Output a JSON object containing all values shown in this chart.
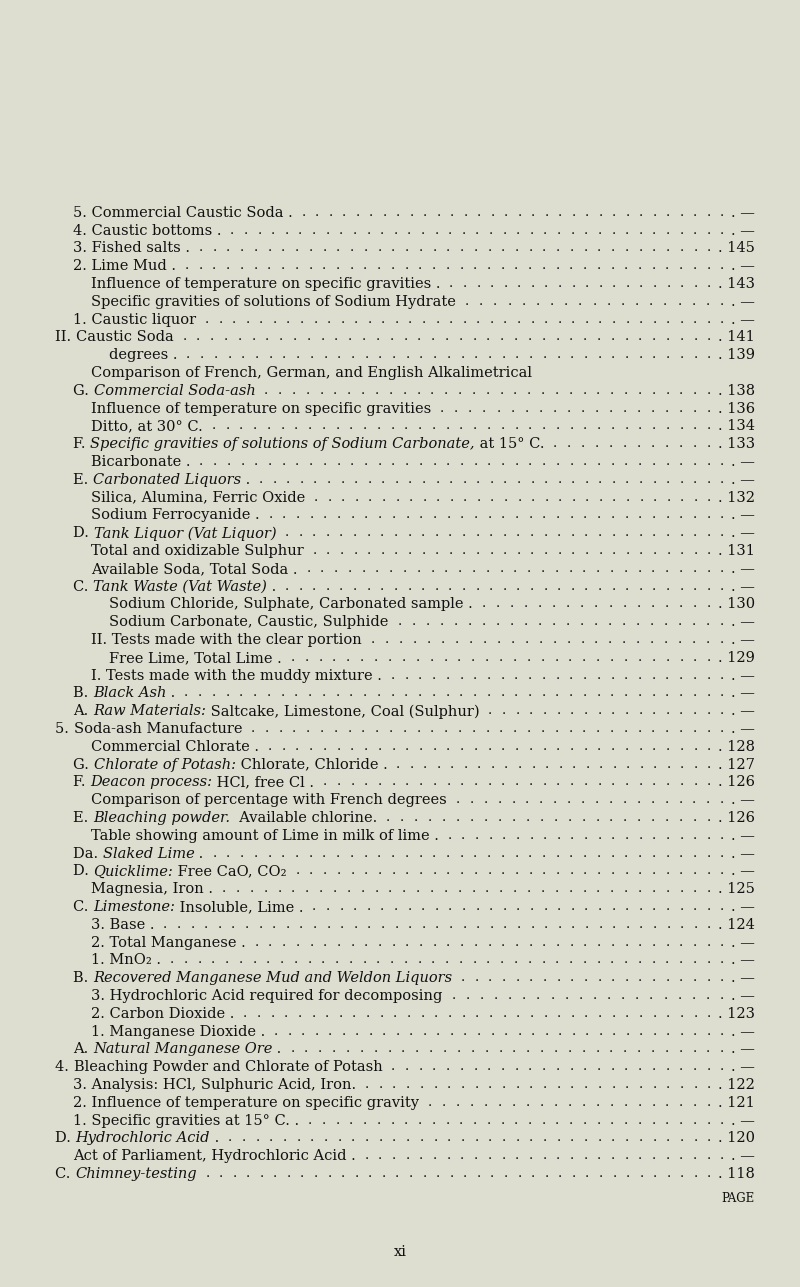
{
  "bg_color": "#deded0",
  "text_color": "#111111",
  "title": "xi",
  "lines": [
    {
      "indent": 0,
      "prefix": "C. ",
      "italic": "Chimney-testing",
      "suffix": "",
      "page": "118"
    },
    {
      "indent": 1,
      "prefix": "Act of Parliament, Hydrochloric Acid .",
      "italic": "",
      "suffix": "",
      "page": "—"
    },
    {
      "indent": 0,
      "prefix": "D. ",
      "italic": "Hydrochloric Acid",
      "suffix": " .",
      "page": "120"
    },
    {
      "indent": 1,
      "prefix": "1. Specific gravities at 15° C. .",
      "italic": "",
      "suffix": "",
      "page": "—"
    },
    {
      "indent": 1,
      "prefix": "2. Influence of temperature on specific gravity",
      "italic": "",
      "suffix": "",
      "page": "121"
    },
    {
      "indent": 1,
      "prefix": "3. Analysis: HCl, Sulphuric Acid, Iron.",
      "italic": "",
      "suffix": "",
      "page": "122"
    },
    {
      "indent": 0,
      "prefix": "4. ",
      "italic": "",
      "suffix": "",
      "page": "—",
      "smallcaps": "Bleaching Powder and Chlorate of Potash"
    },
    {
      "indent": 1,
      "prefix": "A. ",
      "italic": "Natural Manganese Ore",
      "suffix": " .",
      "page": "—"
    },
    {
      "indent": 2,
      "prefix": "1. Manganese Dioxide .",
      "italic": "",
      "suffix": "",
      "page": "—"
    },
    {
      "indent": 2,
      "prefix": "2. Carbon Dioxide .",
      "italic": "",
      "suffix": "",
      "page": "123"
    },
    {
      "indent": 2,
      "prefix": "3. Hydrochloric Acid required for decomposing",
      "italic": "",
      "suffix": "",
      "page": "—"
    },
    {
      "indent": 1,
      "prefix": "B. ",
      "italic": "Recovered Manganese Mud and Weldon Liquors",
      "suffix": "",
      "page": "—"
    },
    {
      "indent": 2,
      "prefix": "1. MnO₂ .",
      "italic": "",
      "suffix": "",
      "page": "—"
    },
    {
      "indent": 2,
      "prefix": "2. Total Manganese .",
      "italic": "",
      "suffix": "",
      "page": "—"
    },
    {
      "indent": 2,
      "prefix": "3. Base .",
      "italic": "",
      "suffix": "",
      "page": "124"
    },
    {
      "indent": 1,
      "prefix": "C. ",
      "italic": "Limestone:",
      "suffix": " Insoluble, Lime .",
      "page": "—"
    },
    {
      "indent": 2,
      "prefix": "Magnesia, Iron .",
      "italic": "",
      "suffix": "",
      "page": "125"
    },
    {
      "indent": 1,
      "prefix": "D. ",
      "italic": "Quicklime:",
      "suffix": " Free CaO, CO₂",
      "page": "—"
    },
    {
      "indent": 1,
      "prefix": "Da. ",
      "italic": "Slaked Lime",
      "suffix": " .",
      "page": "—"
    },
    {
      "indent": 2,
      "prefix": "Table showing amount of Lime in milk of lime .",
      "italic": "",
      "suffix": "",
      "page": "—"
    },
    {
      "indent": 1,
      "prefix": "E. ",
      "italic": "Bleaching powder.",
      "suffix": "  Available chlorine.",
      "page": "126"
    },
    {
      "indent": 2,
      "prefix": "Comparison of percentage with French degrees",
      "italic": "",
      "suffix": "",
      "page": "—"
    },
    {
      "indent": 1,
      "prefix": "F. ",
      "italic": "Deacon process:",
      "suffix": " HCl, free Cl .",
      "page": "126"
    },
    {
      "indent": 1,
      "prefix": "G. ",
      "italic": "Chlorate of Potash:",
      "suffix": " Chlorate, Chloride .",
      "page": "127"
    },
    {
      "indent": 2,
      "prefix": "Commercial Chlorate .",
      "italic": "",
      "suffix": "",
      "page": "128"
    },
    {
      "indent": 0,
      "prefix": "5. ",
      "italic": "",
      "suffix": "",
      "page": "—",
      "smallcaps": "Soda-ash Manufacture"
    },
    {
      "indent": 1,
      "prefix": "A. ",
      "italic": "Raw Materials:",
      "suffix": " Saltcake, Limestone, Coal (Sulphur)",
      "page": "—"
    },
    {
      "indent": 1,
      "prefix": "B. ",
      "italic": "Black Ash",
      "suffix": " .",
      "page": "—"
    },
    {
      "indent": 2,
      "prefix": "I. Tests made with the muddy mixture .",
      "italic": "",
      "suffix": "",
      "page": "—"
    },
    {
      "indent": 3,
      "prefix": "Free Lime, Total Lime .",
      "italic": "",
      "suffix": "",
      "page": "129"
    },
    {
      "indent": 2,
      "prefix": "II. Tests made with the clear portion",
      "italic": "",
      "suffix": "",
      "page": "—"
    },
    {
      "indent": 3,
      "prefix": "Sodium Carbonate, Caustic, Sulphide",
      "italic": "",
      "suffix": "",
      "page": "—"
    },
    {
      "indent": 3,
      "prefix": "Sodium Chloride, Sulphate, Carbonated sample .",
      "italic": "",
      "suffix": "",
      "page": "130"
    },
    {
      "indent": 1,
      "prefix": "C. ",
      "italic": "Tank Waste (Vat Waste)",
      "suffix": " .",
      "page": "—"
    },
    {
      "indent": 2,
      "prefix": "Available Soda, Total Soda .",
      "italic": "",
      "suffix": "",
      "page": "—"
    },
    {
      "indent": 2,
      "prefix": "Total and oxidizable Sulphur",
      "italic": "",
      "suffix": "",
      "page": "131"
    },
    {
      "indent": 1,
      "prefix": "D. ",
      "italic": "Tank Liquor (Vat Liquor)",
      "suffix": "",
      "page": "—"
    },
    {
      "indent": 2,
      "prefix": "Sodium Ferrocyanide .",
      "italic": "",
      "suffix": "",
      "page": "—"
    },
    {
      "indent": 2,
      "prefix": "Silica, Alumina, Ferric Oxide",
      "italic": "",
      "suffix": "",
      "page": "132"
    },
    {
      "indent": 1,
      "prefix": "E. ",
      "italic": "Carbonated Liquors",
      "suffix": " .",
      "page": "—"
    },
    {
      "indent": 2,
      "prefix": "Bicarbonate .",
      "italic": "",
      "suffix": "",
      "page": "—"
    },
    {
      "indent": 1,
      "prefix": "F. ",
      "italic": "Specific gravities of solutions of Sodium Carbonate,",
      "suffix": " at 15° C.",
      "page": "133"
    },
    {
      "indent": 2,
      "prefix": "Ditto, at 30° C.",
      "italic": "",
      "suffix": "",
      "page": "134"
    },
    {
      "indent": 2,
      "prefix": "Influence of temperature on specific gravities",
      "italic": "",
      "suffix": "",
      "page": "136"
    },
    {
      "indent": 1,
      "prefix": "G. ",
      "italic": "Commercial Soda-ash",
      "suffix": "",
      "page": "138"
    },
    {
      "indent": 2,
      "prefix": "Comparison of French, German, and English Alkalimetrical",
      "italic": "",
      "suffix": "",
      "page": ""
    },
    {
      "indent": 3,
      "prefix": "degrees .",
      "italic": "",
      "suffix": "",
      "page": "139"
    },
    {
      "indent": 0,
      "prefix": "II. ",
      "italic": "",
      "suffix": "",
      "page": "141",
      "smallcaps": "Caustic Soda"
    },
    {
      "indent": 1,
      "prefix": "1. Caustic liquor",
      "italic": "",
      "suffix": "",
      "page": "—"
    },
    {
      "indent": 2,
      "prefix": "Specific gravities of solutions of Sodium Hydrate",
      "italic": "",
      "suffix": "",
      "page": "—"
    },
    {
      "indent": 2,
      "prefix": "Influence of temperature on specific gravities .",
      "italic": "",
      "suffix": "",
      "page": "143"
    },
    {
      "indent": 1,
      "prefix": "2. Lime Mud .",
      "italic": "",
      "suffix": "",
      "page": "—"
    },
    {
      "indent": 1,
      "prefix": "3. Fished salts .",
      "italic": "",
      "suffix": "",
      "page": "145"
    },
    {
      "indent": 1,
      "prefix": "4. Caustic bottoms .",
      "italic": "",
      "suffix": "",
      "page": "—"
    },
    {
      "indent": 1,
      "prefix": "5. Commercial Caustic Soda .",
      "italic": "",
      "suffix": "",
      "page": "—"
    }
  ]
}
